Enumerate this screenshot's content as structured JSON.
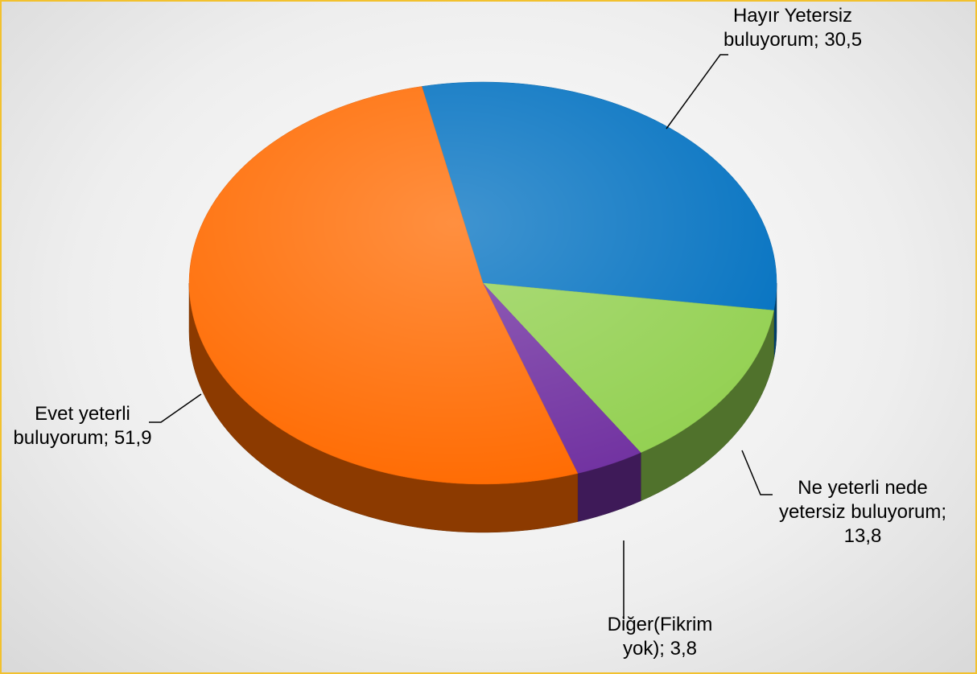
{
  "chart_data": {
    "type": "pie",
    "values": [
      30.5,
      13.8,
      3.8,
      51.9
    ],
    "value_labels": [
      "Hayır Yetersiz buluyorum; 30,5",
      "Ne yeterli nede yetersiz buluyorum; 13,8",
      "Diğer(Fikrim yok); 3,8",
      "Evet yeterli buluyorum; 51,9"
    ],
    "colors": [
      "#0070c0",
      "#92d050",
      "#7030a0",
      "#ff6a00"
    ]
  }
}
